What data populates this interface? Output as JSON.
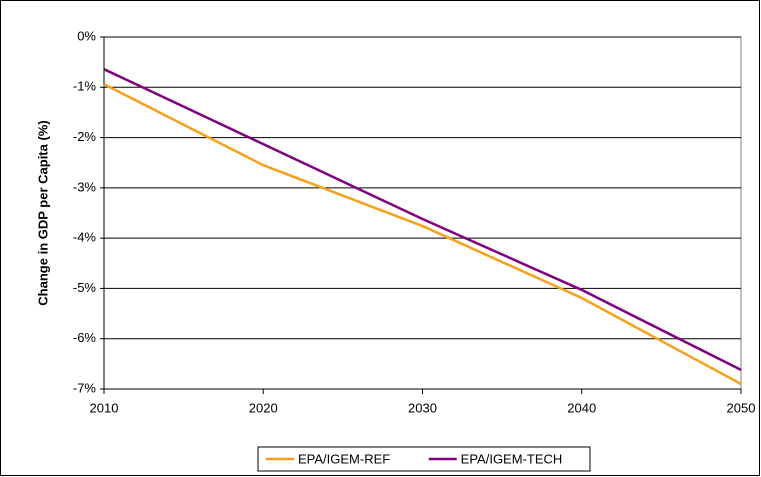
{
  "chart_data": {
    "type": "line",
    "y_label": "Change in GDP per Capita (%)",
    "x": [
      2010,
      2020,
      2030,
      2040,
      2050
    ],
    "series": [
      {
        "name": "EPA/IGEM-REF",
        "color": "#f7a01d",
        "values": [
          -0.94,
          -2.55,
          -3.76,
          -5.19,
          -6.9
        ]
      },
      {
        "name": "EPA/IGEM-TECH",
        "color": "#800080",
        "values": [
          -0.64,
          -2.13,
          -3.62,
          -5.03,
          -6.62
        ]
      }
    ],
    "xlim": [
      2010,
      2050
    ],
    "xticks": [
      2010,
      2020,
      2030,
      2040,
      2050
    ],
    "ylim": [
      -7,
      0
    ],
    "yticks": [
      {
        "value": 0,
        "label": "0%"
      },
      {
        "value": -1,
        "label": "-1%"
      },
      {
        "value": -2,
        "label": "-2%"
      },
      {
        "value": -3,
        "label": "-3%"
      },
      {
        "value": -4,
        "label": "-4%"
      },
      {
        "value": -5,
        "label": "-5%"
      },
      {
        "value": -6,
        "label": "-6%"
      },
      {
        "value": -7,
        "label": "-7%"
      }
    ],
    "grid": true,
    "legend": "bottom"
  }
}
